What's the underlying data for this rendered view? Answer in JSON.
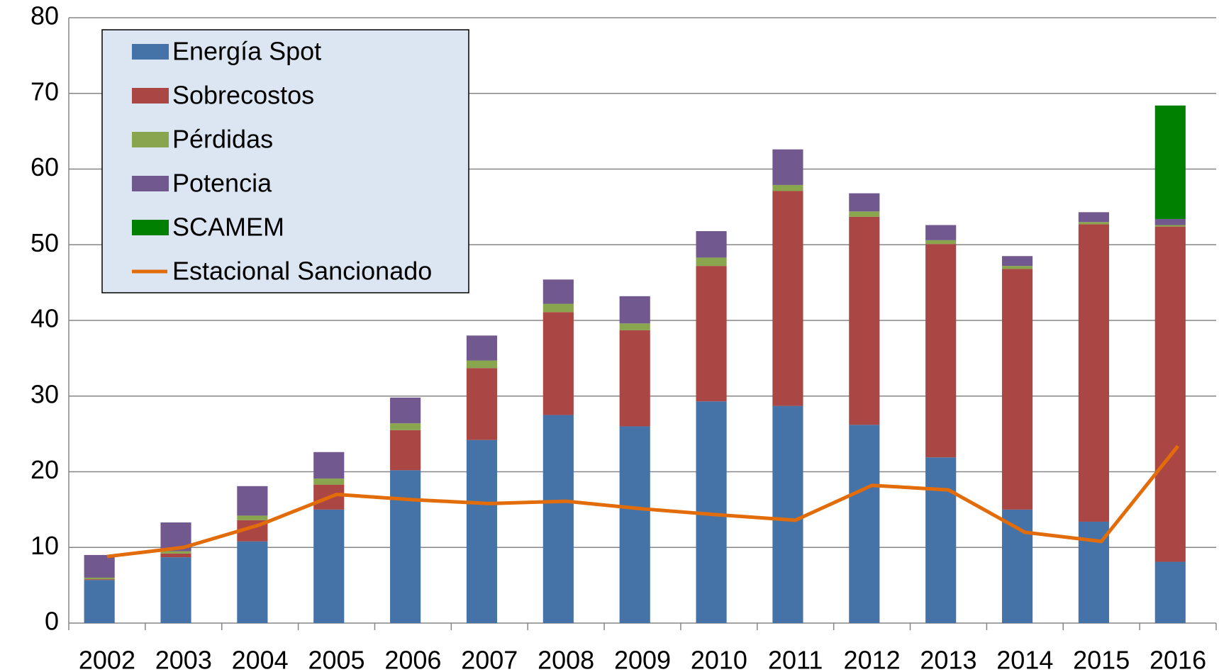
{
  "chart_data": {
    "type": "stacked_bar",
    "categories": [
      "2002",
      "2003",
      "2004",
      "2005",
      "2006",
      "2007",
      "2008",
      "2009",
      "2010",
      "2011",
      "2012",
      "2013",
      "2014",
      "2015",
      "2016"
    ],
    "series": [
      {
        "name": "Energía Spot",
        "color": "#4573a7",
        "values": [
          5.7,
          8.7,
          10.8,
          15.0,
          20.2,
          24.2,
          27.5,
          26.0,
          29.3,
          28.7,
          26.2,
          21.9,
          15.0,
          13.4,
          8.1
        ]
      },
      {
        "name": "Sobrecostos",
        "color": "#aa4643",
        "values": [
          0.1,
          0.5,
          2.8,
          3.3,
          5.3,
          9.5,
          13.6,
          12.7,
          17.9,
          28.4,
          27.5,
          28.2,
          31.8,
          39.3,
          44.3
        ]
      },
      {
        "name": "Pérdidas",
        "color": "#89a54e",
        "values": [
          0.2,
          0.3,
          0.6,
          0.8,
          0.9,
          1.0,
          1.1,
          0.9,
          1.1,
          0.8,
          0.7,
          0.5,
          0.4,
          0.3,
          0.2
        ]
      },
      {
        "name": "Potencia",
        "color": "#71588f",
        "values": [
          3.0,
          3.8,
          3.9,
          3.5,
          3.4,
          3.3,
          3.2,
          3.6,
          3.5,
          4.7,
          2.4,
          2.0,
          1.3,
          1.3,
          0.8
        ]
      },
      {
        "name": "SCAMEM",
        "color": "#008000",
        "values": [
          null,
          null,
          null,
          null,
          null,
          null,
          null,
          null,
          null,
          null,
          null,
          null,
          null,
          null,
          15.0
        ]
      },
      {
        "name": "Estacional Sancionado",
        "type": "line",
        "color": "#e36c0a",
        "values": [
          8.8,
          10.0,
          13.0,
          17.0,
          16.3,
          15.8,
          16.1,
          15.1,
          14.3,
          13.6,
          18.2,
          17.6,
          12.0,
          10.8,
          23.4
        ]
      }
    ],
    "ylim": [
      0,
      80
    ],
    "yticks": [
      0,
      10,
      20,
      30,
      40,
      50,
      60,
      70,
      80
    ],
    "grid": true,
    "legend": "top-left"
  }
}
